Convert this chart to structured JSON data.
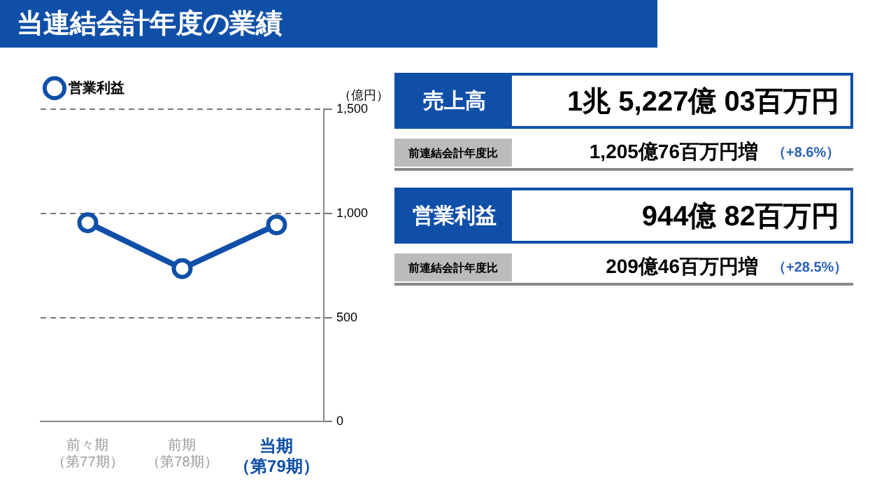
{
  "chart_data": [
    {
      "type": "line",
      "title": "当連結会計年度の業績",
      "ylabel": "（億円）",
      "categories": [
        "前々期（第77期）",
        "前期（第78期）",
        "当期（第79期）"
      ],
      "series": [
        {
          "name": "営業利益",
          "color": "#0f4fa8",
          "values": [
            955,
            735,
            945
          ]
        }
      ],
      "ylim": [
        0,
        1500
      ],
      "yticks": [
        {
          "value": 0,
          "label": "0"
        },
        {
          "value": 500,
          "label": "500"
        },
        {
          "value": 1000,
          "label": "1,000"
        },
        {
          "value": 1500,
          "label": "1,500"
        }
      ],
      "grid": "y",
      "legend": "top left",
      "marker": "circle",
      "line_style": "solid"
    },
    {
      "type": "other",
      "annotations": [
        "売上高",
        "1兆 5,227億 03百万円",
        "前連結会計年度比",
        "1,205億76百万円増",
        "（+8.6%）",
        "営業利益",
        "944億 82百万円",
        "前連結会計年度比",
        "209億46百万円増",
        "（+28.5%）"
      ]
    }
  ]
}
